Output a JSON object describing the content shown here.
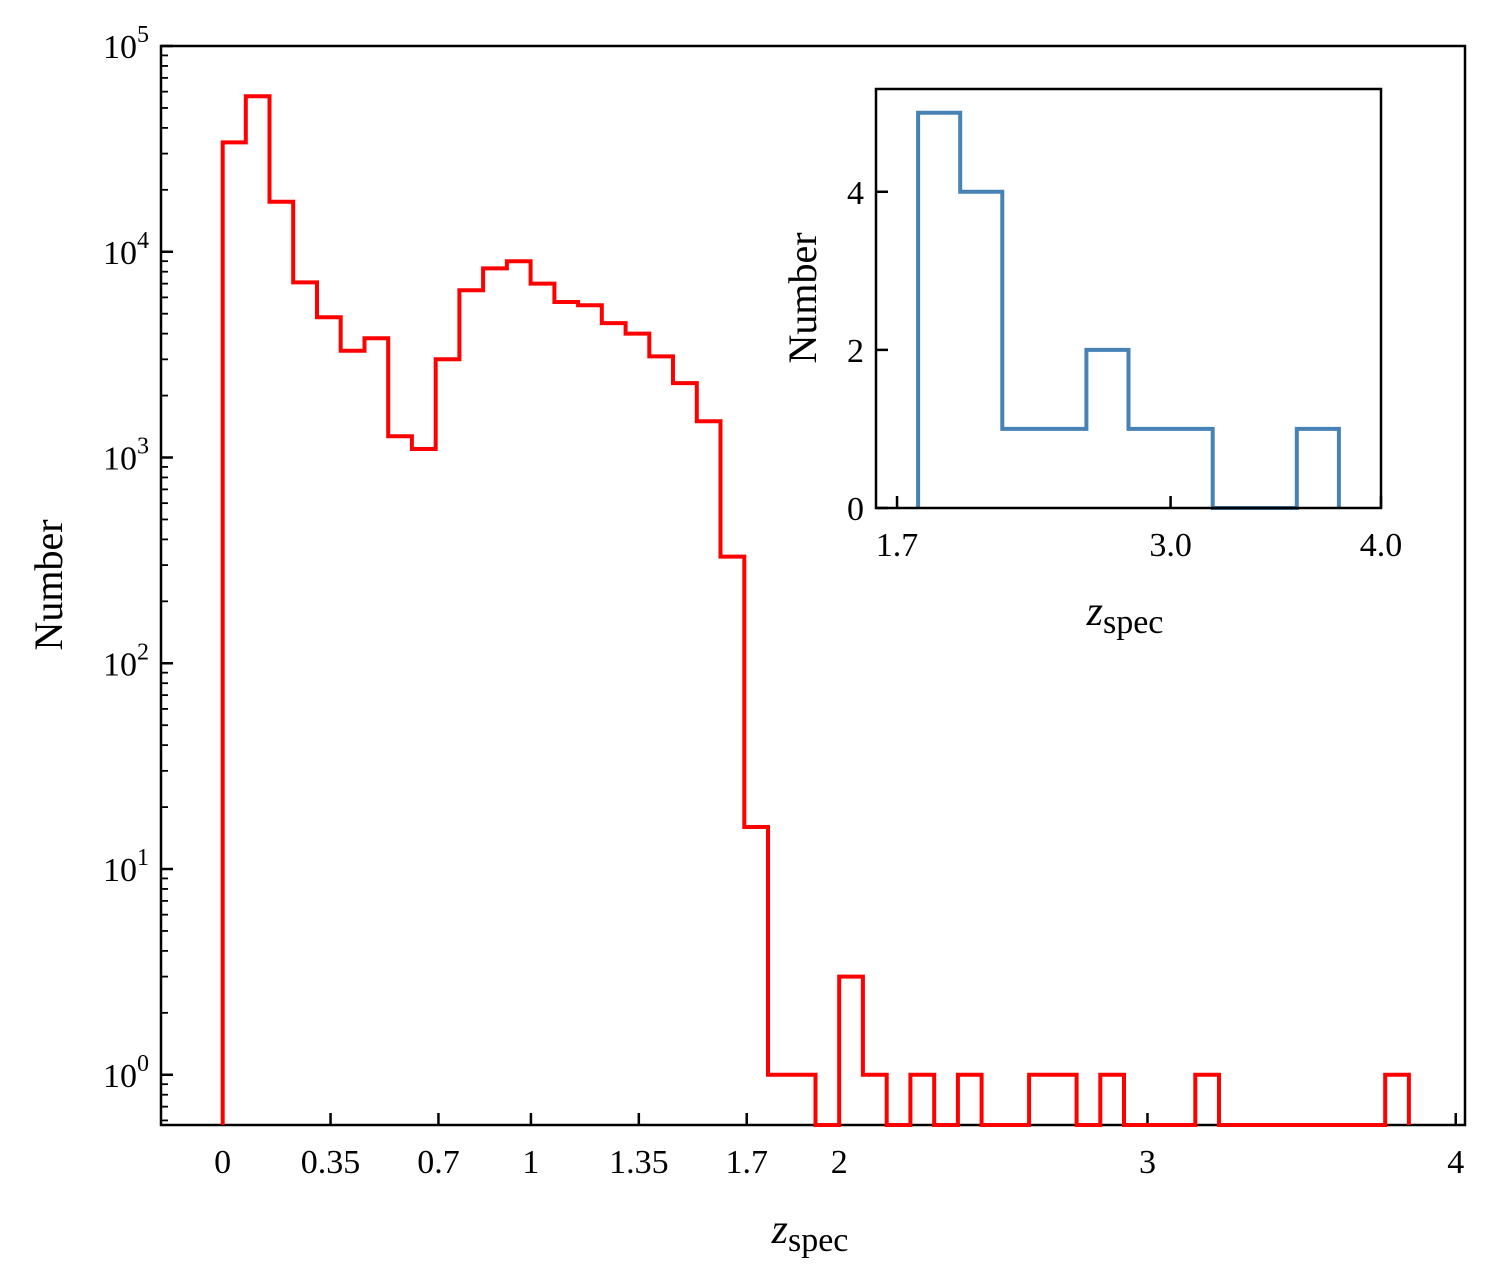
{
  "chart_data": [
    {
      "type": "step-histogram",
      "xlabel_main": "z",
      "xlabel_sub": "spec",
      "ylabel": "Number",
      "yscale": "log",
      "xlim": [
        -0.2,
        4.03
      ],
      "ylim": [
        0.57,
        100000
      ],
      "color": "#ff0000",
      "x_ticks": [
        {
          "value": 0,
          "label": "0"
        },
        {
          "value": 0.35,
          "label": "0.35"
        },
        {
          "value": 0.7,
          "label": "0.7"
        },
        {
          "value": 1,
          "label": "1"
        },
        {
          "value": 1.35,
          "label": "1.35"
        },
        {
          "value": 1.7,
          "label": "1.7"
        },
        {
          "value": 2,
          "label": "2"
        },
        {
          "value": 3,
          "label": "3"
        },
        {
          "value": 4,
          "label": "4"
        }
      ],
      "y_ticks": [
        {
          "value": 1,
          "base": "10",
          "exp": "0"
        },
        {
          "value": 10,
          "base": "10",
          "exp": "1"
        },
        {
          "value": 100,
          "base": "10",
          "exp": "2"
        },
        {
          "value": 1000,
          "base": "10",
          "exp": "3"
        },
        {
          "value": 10000,
          "base": "10",
          "exp": "4"
        },
        {
          "value": 100000,
          "base": "10",
          "exp": "5"
        }
      ],
      "bin_edges": [
        0,
        0.075,
        0.152,
        0.229,
        0.306,
        0.383,
        0.46,
        0.537,
        0.614,
        0.691,
        0.768,
        0.845,
        0.922,
        0.999,
        1.076,
        1.153,
        1.23,
        1.307,
        1.384,
        1.461,
        1.538,
        1.615,
        1.692,
        1.769,
        1.846,
        1.923,
        2.0,
        2.077,
        2.154,
        2.231,
        2.308,
        2.385,
        2.462,
        2.539,
        2.616,
        2.693,
        2.77,
        2.847,
        2.924,
        3.001,
        3.078,
        3.155,
        3.232,
        3.309,
        3.386,
        3.463,
        3.54,
        3.617,
        3.694,
        3.771,
        3.848
      ],
      "counts": [
        34000,
        57000,
        17500,
        7100,
        4800,
        3300,
        3800,
        1270,
        1100,
        3000,
        6500,
        8300,
        9000,
        7000,
        5700,
        5500,
        4500,
        4000,
        3100,
        2300,
        1500,
        330,
        16,
        1,
        1,
        0,
        3,
        1,
        0,
        1,
        0,
        1,
        0,
        0,
        1,
        1,
        0,
        1,
        0,
        0,
        0,
        1,
        0,
        0,
        0,
        0,
        0,
        0,
        0,
        1
      ]
    },
    {
      "type": "step-histogram",
      "xlabel_main": "z",
      "xlabel_sub": "spec",
      "ylabel": "Number",
      "yscale": "linear",
      "xlim": [
        1.6,
        4.0
      ],
      "ylim": [
        0,
        5.3
      ],
      "color": "#4682b4",
      "x_ticks": [
        {
          "value": 1.7,
          "label": "1.7"
        },
        {
          "value": 3.0,
          "label": "3.0"
        },
        {
          "value": 4.0,
          "label": "4.0"
        }
      ],
      "y_ticks": [
        {
          "value": 0,
          "label": "0"
        },
        {
          "value": 2,
          "label": "2"
        },
        {
          "value": 4,
          "label": "4"
        }
      ],
      "bin_edges": [
        1.8,
        2.0,
        2.2,
        2.4,
        2.6,
        2.8,
        3.0,
        3.2,
        3.4,
        3.6,
        3.8
      ],
      "counts": [
        5,
        4,
        1,
        1,
        2,
        1,
        1,
        0,
        0,
        1
      ]
    }
  ]
}
